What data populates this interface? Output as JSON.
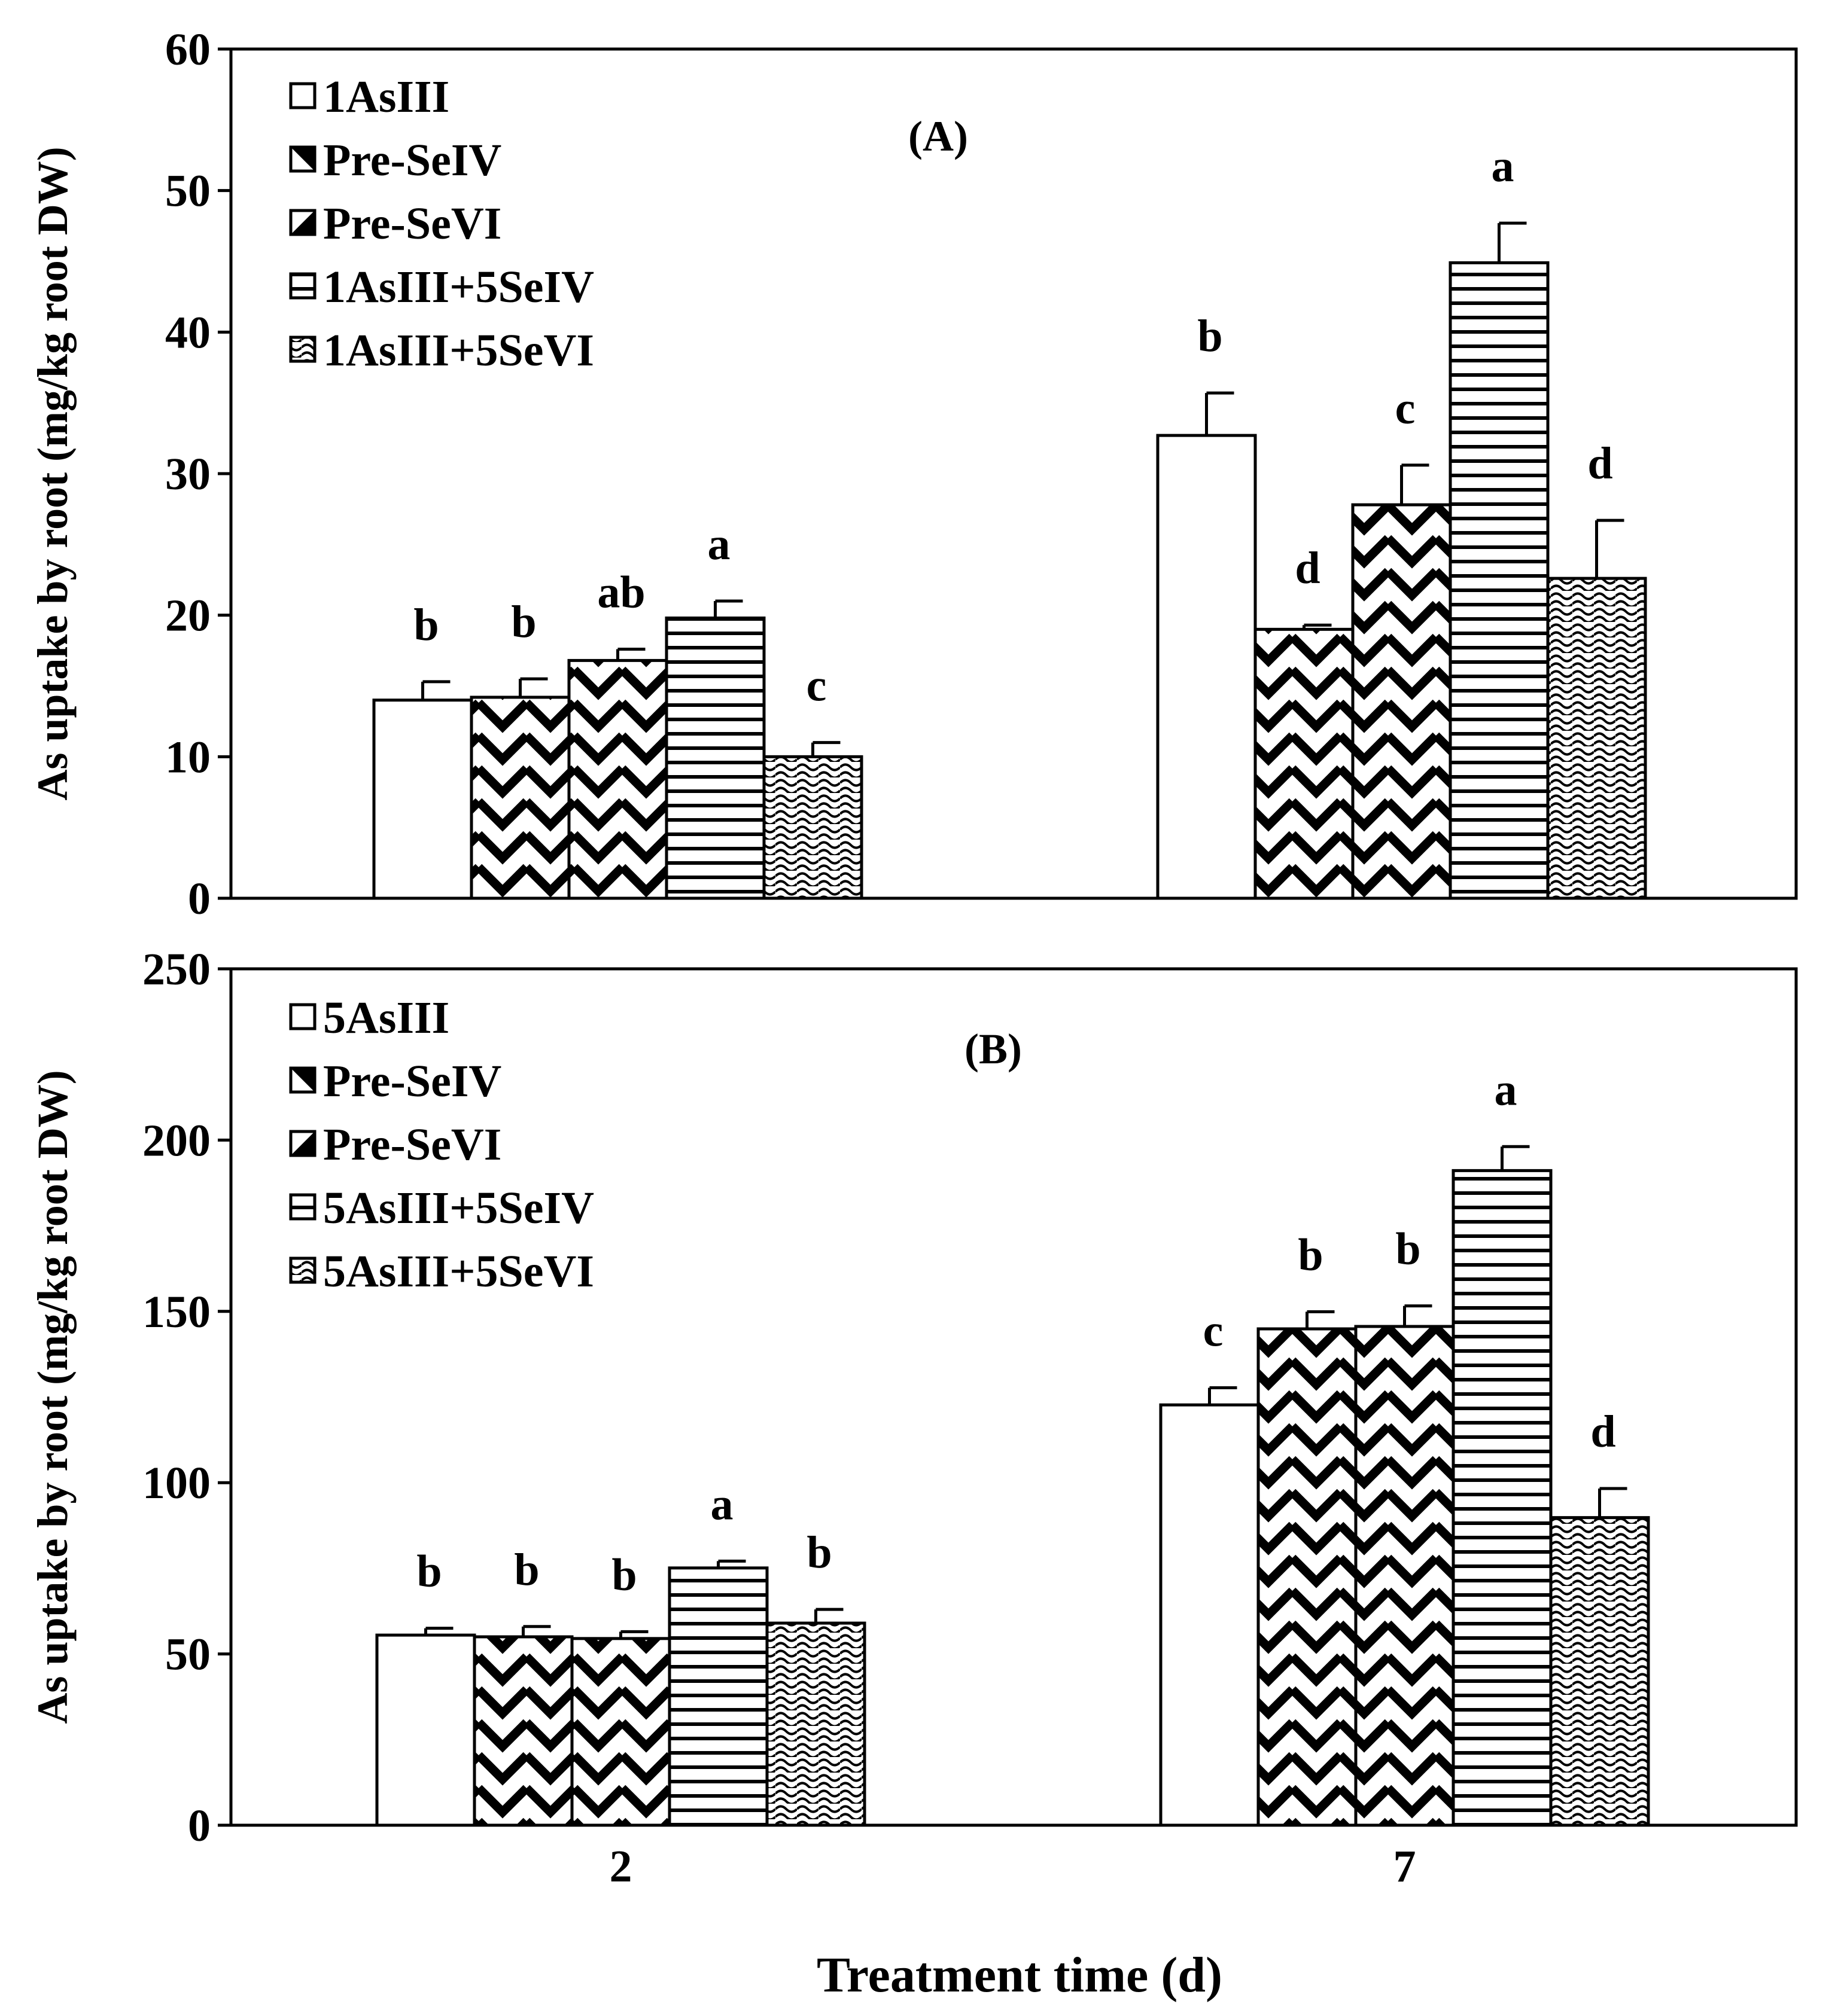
{
  "chart_data": [
    {
      "type": "bar",
      "panel_label": "(A)",
      "ylabel": "As uptake by root (mg/kg root DW)",
      "xlabel": "",
      "ylim": [
        0,
        60
      ],
      "yticks": [
        0,
        10,
        20,
        30,
        40,
        50,
        60
      ],
      "categories": [
        "2",
        "7"
      ],
      "legend_position": "top-left",
      "series": [
        {
          "name": "1AsIII",
          "pattern": "blank",
          "values": [
            14.0,
            32.7
          ],
          "errors": [
            1.3,
            3.0
          ],
          "letters": [
            "b",
            "b"
          ]
        },
        {
          "name": "Pre-SeIV",
          "pattern": "chevron",
          "values": [
            14.2,
            19.0
          ],
          "errors": [
            1.3,
            0.3
          ],
          "letters": [
            "b",
            "d"
          ]
        },
        {
          "name": "Pre-SeVI",
          "pattern": "chevron",
          "values": [
            16.8,
            27.8
          ],
          "errors": [
            0.8,
            2.8
          ],
          "letters": [
            "ab",
            "c"
          ]
        },
        {
          "name": "1AsIII+5SeIV",
          "pattern": "hlines",
          "values": [
            19.8,
            44.9
          ],
          "errors": [
            1.2,
            2.8
          ],
          "letters": [
            "a",
            "a"
          ]
        },
        {
          "name": "1AsIII+5SeVI",
          "pattern": "waves",
          "values": [
            10.0,
            22.6
          ],
          "errors": [
            1.0,
            4.1
          ],
          "letters": [
            "c",
            "d"
          ]
        }
      ]
    },
    {
      "type": "bar",
      "panel_label": "(B)",
      "ylabel": "As uptake by root (mg/kg root DW)",
      "xlabel": "Treatment time (d)",
      "ylim": [
        0,
        250
      ],
      "yticks": [
        0,
        50,
        100,
        150,
        200,
        250
      ],
      "categories": [
        "2",
        "7"
      ],
      "legend_position": "top-left",
      "series": [
        {
          "name": "5AsIII",
          "pattern": "blank",
          "values": [
            55.5,
            122.7
          ],
          "errors": [
            2.0,
            5.0
          ],
          "letters": [
            "b",
            "c"
          ]
        },
        {
          "name": "Pre-SeIV",
          "pattern": "chevron",
          "values": [
            55.0,
            144.9
          ],
          "errors": [
            3.0,
            5.0
          ],
          "letters": [
            "b",
            "b"
          ]
        },
        {
          "name": "Pre-SeVI",
          "pattern": "chevron",
          "values": [
            54.5,
            145.6
          ],
          "errors": [
            2.0,
            6.0
          ],
          "letters": [
            "b",
            "b"
          ]
        },
        {
          "name": "5AsIII+5SeIV",
          "pattern": "hlines",
          "values": [
            75.1,
            191.1
          ],
          "errors": [
            2.0,
            7.0
          ],
          "letters": [
            "a",
            "a"
          ]
        },
        {
          "name": "5AsIII+5SeVI",
          "pattern": "waves",
          "values": [
            59.0,
            89.8
          ],
          "errors": [
            4.0,
            8.5
          ],
          "letters": [
            "b",
            "d"
          ]
        }
      ]
    }
  ]
}
